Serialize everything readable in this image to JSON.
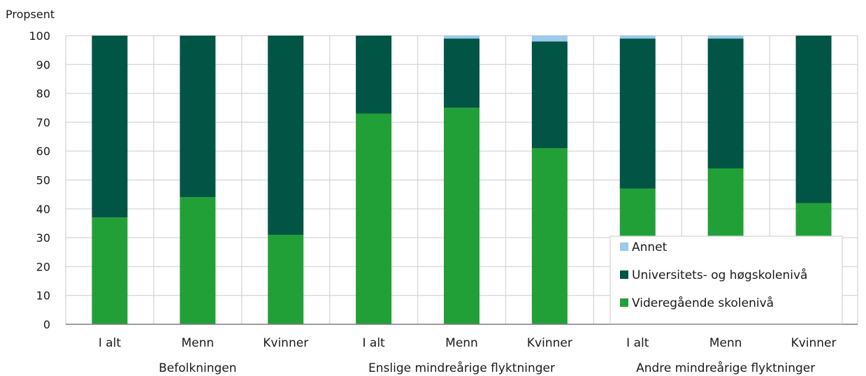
{
  "chart_data": {
    "type": "bar",
    "stacked": true,
    "ylabel": "Propsent",
    "ylim": [
      0,
      100
    ],
    "yticks": [
      0,
      10,
      20,
      30,
      40,
      50,
      60,
      70,
      80,
      90,
      100
    ],
    "grid": true,
    "legend_position": "bottom-right",
    "groups": [
      {
        "name": "Befolkningen",
        "categories": [
          "I alt",
          "Menn",
          "Kvinner"
        ]
      },
      {
        "name": "Enslige mindreårige flyktninger",
        "categories": [
          "I alt",
          "Menn",
          "Kvinner"
        ]
      },
      {
        "name": "Andre mindreårige flyktninger",
        "categories": [
          "I alt",
          "Menn",
          "Kvinner"
        ]
      }
    ],
    "series": [
      {
        "name": "Videregående skolenivå",
        "color": "#22a038",
        "values": [
          37,
          44,
          31,
          73,
          75,
          61,
          47,
          54,
          42
        ]
      },
      {
        "name": "Universitets- og høgskolenivå",
        "color": "#005545",
        "values": [
          63,
          56,
          69,
          27,
          24,
          37,
          52,
          45,
          58
        ]
      },
      {
        "name": "Annet",
        "color": "#9ccaea",
        "values": [
          0,
          0,
          0,
          0,
          1,
          2,
          1,
          1,
          0
        ]
      }
    ],
    "legend_order": [
      "Annet",
      "Universitets- og høgskolenivå",
      "Videregående skolenivå"
    ]
  }
}
